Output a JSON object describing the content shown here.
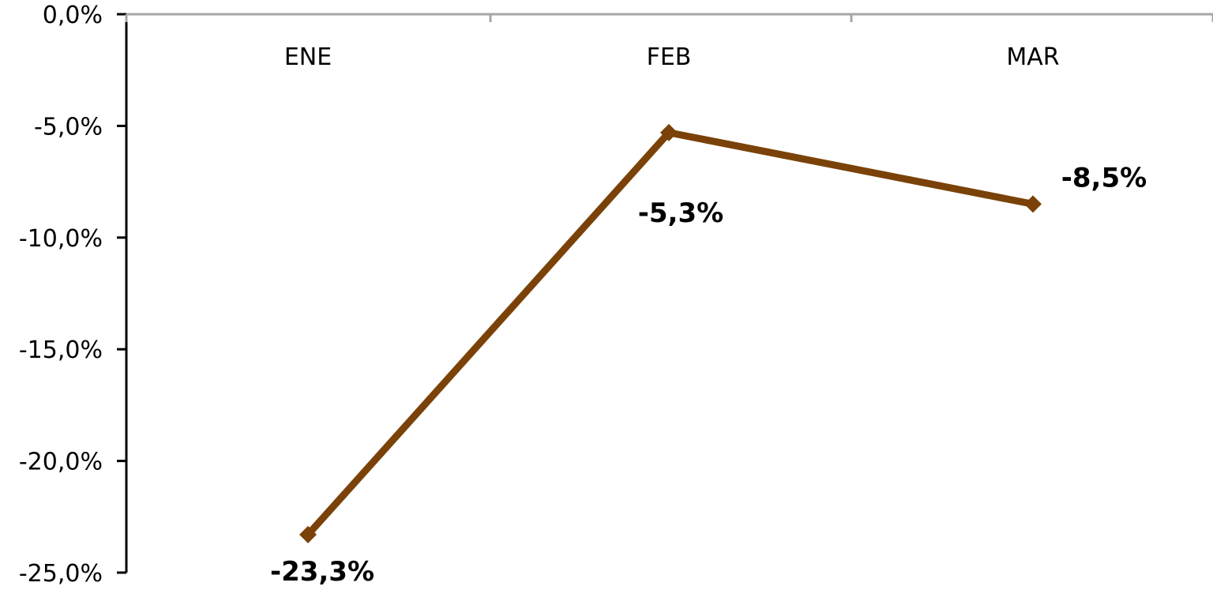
{
  "chart_data": {
    "type": "line",
    "categories": [
      "ENE",
      "FEB",
      "MAR"
    ],
    "series": [
      {
        "values": [
          -23.3,
          -5.3,
          -8.5
        ],
        "labels": [
          "-23,3%",
          "-5,3%",
          "-8,5%"
        ]
      }
    ],
    "ylim": [
      -25,
      0
    ],
    "yticks": [
      0,
      -5,
      -10,
      -15,
      -20,
      -25
    ],
    "ytick_labels": [
      "0,0%",
      "-5,0%",
      "-10,0%",
      "-15,0%",
      "-20,0%",
      "-25,0%"
    ],
    "x_axis_position": "top",
    "grid": false,
    "legend": "none",
    "colors": {
      "line": "#7a4208",
      "marker": "#7a4208",
      "x_axis": "#a6a6a6",
      "y_axis": "#000000"
    }
  }
}
